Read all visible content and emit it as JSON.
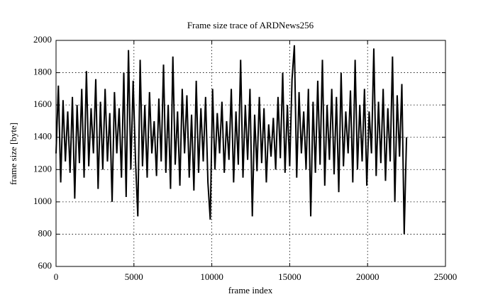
{
  "chart_data": {
    "type": "line",
    "title": "Frame size trace of ARDNews256",
    "x_label": "frame index",
    "y_label": "frame size [byte]",
    "xlim": [
      0,
      25000
    ],
    "xticks": [
      0,
      5000,
      10000,
      15000,
      20000,
      25000
    ],
    "ylim": [
      600,
      2000
    ],
    "yticks": [
      600,
      800,
      1000,
      1200,
      1400,
      1600,
      1800,
      2000
    ],
    "grid": true,
    "series": [
      {
        "color": "#000000",
        "x": [
          0,
          150,
          300,
          450,
          600,
          750,
          900,
          1050,
          1200,
          1350,
          1500,
          1650,
          1800,
          1950,
          2100,
          2250,
          2400,
          2550,
          2700,
          2850,
          3000,
          3150,
          3300,
          3450,
          3600,
          3750,
          3900,
          4050,
          4200,
          4350,
          4500,
          4650,
          4800,
          4950,
          5100,
          5250,
          5400,
          5550,
          5700,
          5850,
          6000,
          6150,
          6300,
          6450,
          6600,
          6750,
          6900,
          7050,
          7200,
          7350,
          7500,
          7650,
          7800,
          7950,
          8100,
          8250,
          8400,
          8550,
          8700,
          8850,
          9000,
          9150,
          9300,
          9450,
          9600,
          9750,
          9900,
          10050,
          10200,
          10350,
          10500,
          10650,
          10800,
          10950,
          11100,
          11250,
          11400,
          11550,
          11700,
          11850,
          12000,
          12150,
          12300,
          12450,
          12600,
          12750,
          12900,
          13050,
          13200,
          13350,
          13500,
          13650,
          13800,
          13950,
          14100,
          14250,
          14400,
          14550,
          14700,
          14850,
          15000,
          15150,
          15300,
          15450,
          15600,
          15750,
          15900,
          16050,
          16200,
          16350,
          16500,
          16650,
          16800,
          16950,
          17100,
          17250,
          17400,
          17550,
          17700,
          17850,
          18000,
          18150,
          18300,
          18450,
          18600,
          18750,
          18900,
          19050,
          19200,
          19350,
          19500,
          19650,
          19800,
          19950,
          20100,
          20250,
          20400,
          20550,
          20700,
          20850,
          21000,
          21150,
          21300,
          21450,
          21600,
          21750,
          21900,
          22050,
          22200,
          22350,
          22500
        ],
        "values": [
          1300,
          1720,
          1120,
          1630,
          1250,
          1560,
          1180,
          1650,
          1020,
          1600,
          1240,
          1700,
          1150,
          1810,
          1220,
          1580,
          1300,
          1760,
          1080,
          1620,
          1200,
          1700,
          1250,
          1550,
          1000,
          1680,
          1300,
          1580,
          1150,
          1800,
          1030,
          1940,
          1200,
          1750,
          1260,
          910,
          1880,
          1220,
          1600,
          1150,
          1680,
          1300,
          1500,
          1160,
          1640,
          1250,
          1850,
          1180,
          1600,
          1080,
          1900,
          1230,
          1560,
          1100,
          1700,
          1300,
          1660,
          1150,
          1540,
          1070,
          1750,
          1180,
          1580,
          1250,
          1650,
          1120,
          890,
          1700,
          1200,
          1550,
          1300,
          1620,
          1180,
          1500,
          1260,
          1700,
          1120,
          1560,
          1230,
          1880,
          1150,
          1600,
          1260,
          1700,
          910,
          1540,
          1190,
          1650,
          1240,
          1580,
          1120,
          1480,
          1280,
          1520,
          1200,
          1650,
          1270,
          1800,
          1180,
          1600,
          1220,
          1760,
          1970,
          1150,
          1680,
          1300,
          1560,
          1200,
          1700,
          910,
          1620,
          1180,
          1750,
          1230,
          1880,
          1100,
          1600,
          1260,
          1700,
          1170,
          1650,
          1060,
          1800,
          1220,
          1560,
          1300,
          1690,
          1120,
          1880,
          1200,
          1600,
          1250,
          1700,
          1100,
          1560,
          1300,
          1950,
          1160,
          1620,
          1240,
          1700,
          1130,
          1580,
          1250,
          1900,
          1000,
          1660,
          1280,
          1730,
          800,
          1400
        ]
      }
    ]
  }
}
